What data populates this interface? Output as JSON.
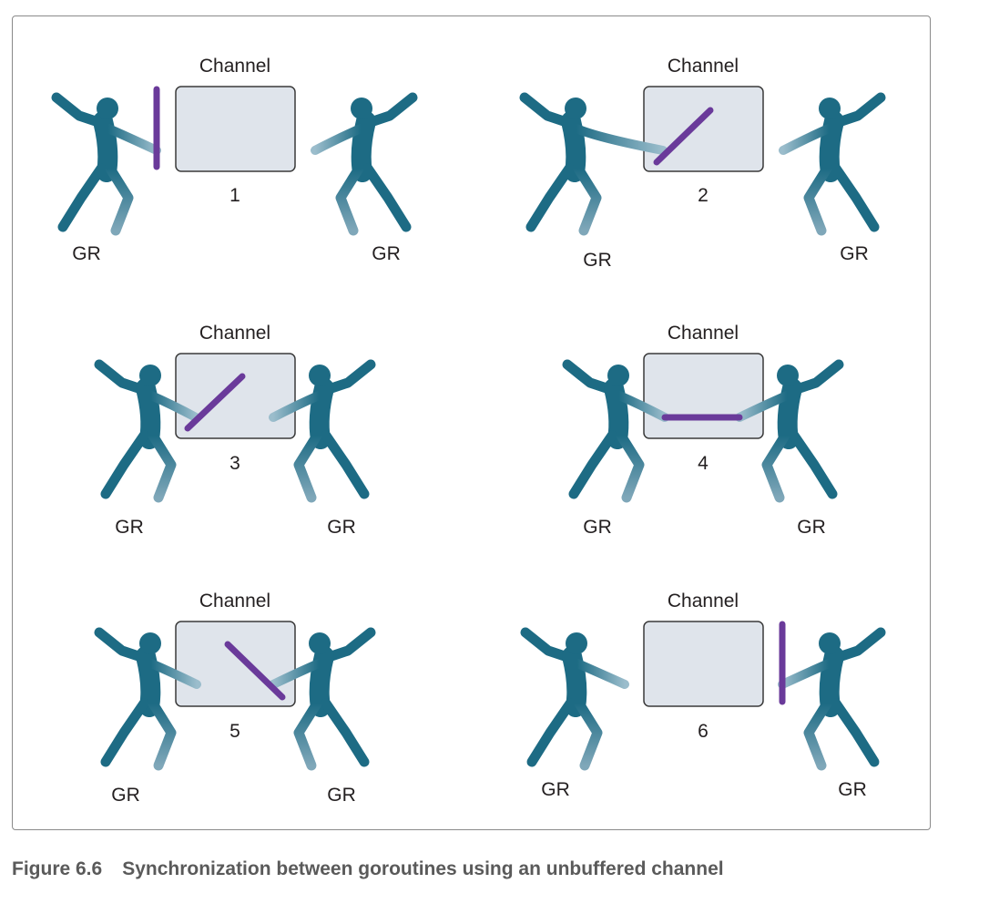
{
  "colors": {
    "figure": "#1d6b84",
    "figure_light": "#8fb3c4",
    "channel_fill": "#dfe4eb",
    "channel_stroke": "#3a3a3a",
    "baton": "#6a3a9a",
    "caption": "#5a5a5a"
  },
  "caption": {
    "number": "Figure 6.6",
    "text": "Synchronization between goroutines using an unbuffered channel"
  },
  "panels": [
    {
      "step": "1",
      "channel_label": "Channel",
      "left_label": "GR",
      "right_label": "GR",
      "baton_state": "held by left goroutine, outside channel"
    },
    {
      "step": "2",
      "channel_label": "Channel",
      "left_label": "GR",
      "right_label": "GR",
      "baton_state": "left goroutine places baton into channel"
    },
    {
      "step": "3",
      "channel_label": "Channel",
      "left_label": "GR",
      "right_label": "GR",
      "baton_state": "left goroutine in channel, right goroutine reaching"
    },
    {
      "step": "4",
      "channel_label": "Channel",
      "left_label": "GR",
      "right_label": "GR",
      "baton_state": "both goroutines hold baton inside channel"
    },
    {
      "step": "5",
      "channel_label": "Channel",
      "left_label": "GR",
      "right_label": "GR",
      "baton_state": "right goroutine takes baton"
    },
    {
      "step": "6",
      "channel_label": "Channel",
      "left_label": "GR",
      "right_label": "GR",
      "baton_state": "held by right goroutine, outside channel"
    }
  ]
}
